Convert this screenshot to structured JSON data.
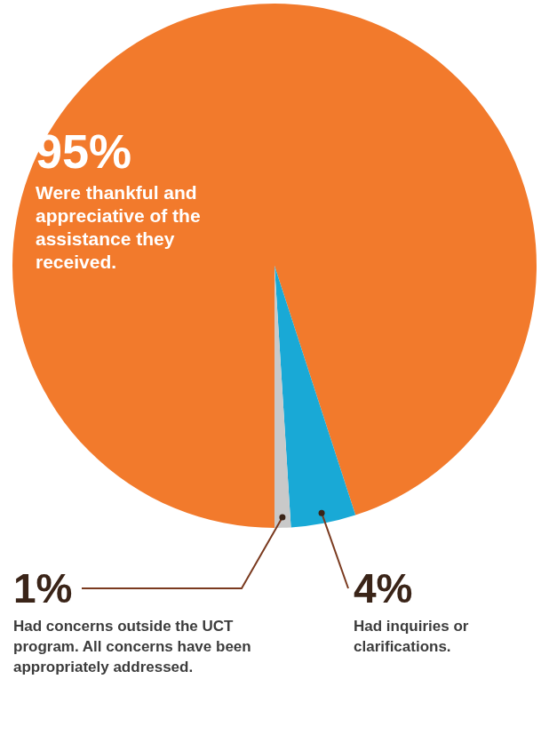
{
  "chart_data": {
    "type": "pie",
    "categories": [
      "Were thankful and appreciative of the assistance they received.",
      "Had inquiries or clarifications.",
      "Had concerns outside the UCT program. All concerns have been appropriately addressed."
    ],
    "values": [
      95,
      4,
      1
    ],
    "value_labels": [
      "95%",
      "4%",
      "1%"
    ],
    "colors": [
      "#f27a2c",
      "#19a9d6",
      "#c9c9c9"
    ],
    "data_labels": true
  }
}
